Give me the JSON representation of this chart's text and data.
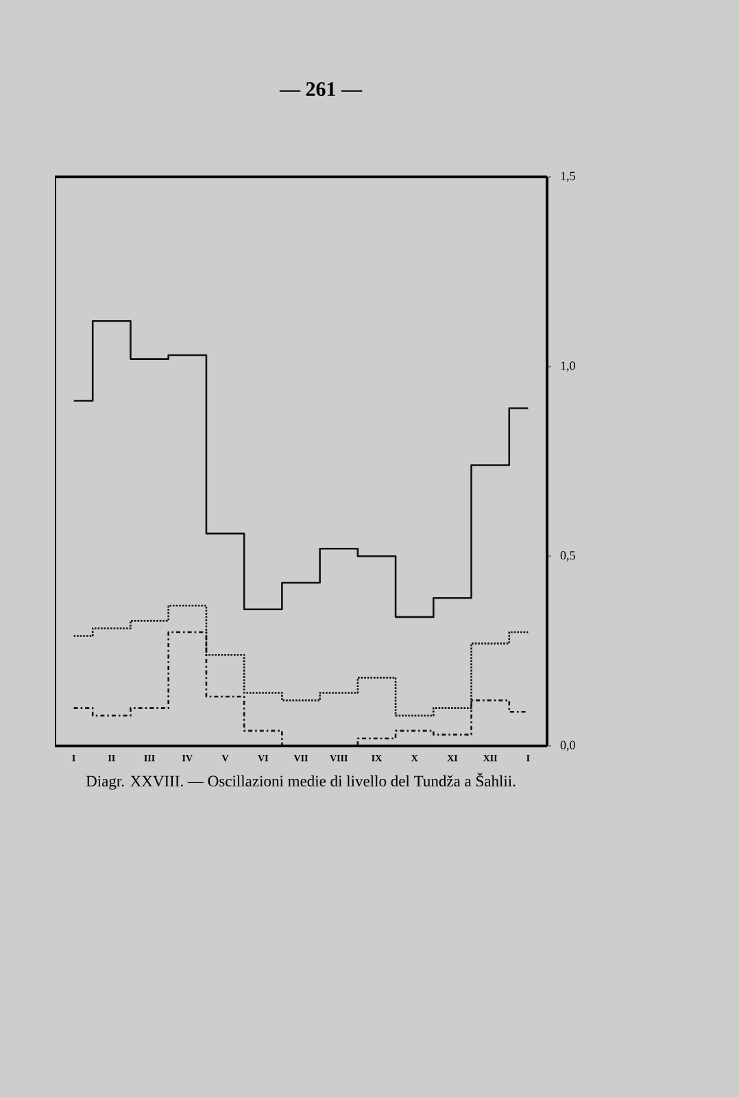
{
  "chart_data": {
    "type": "step",
    "title": "Diagr. XXVIII. — Oscillazioni medie di livello del Tundža a Šahlii.",
    "annotations": [
      "— 261 —"
    ],
    "categories": [
      "I",
      "II",
      "III",
      "IV",
      "V",
      "VI",
      "VII",
      "VIII",
      "IX",
      "X",
      "XI",
      "XII",
      "I"
    ],
    "series": [
      {
        "color": "#111111",
        "line_style": "solid",
        "values": [
          0.91,
          1.12,
          1.02,
          1.03,
          0.56,
          0.36,
          0.43,
          0.52,
          0.5,
          0.34,
          0.39,
          0.74,
          0.89
        ]
      },
      {
        "color": "#111111",
        "line_style": "dotted",
        "values": [
          0.29,
          0.31,
          0.33,
          0.37,
          0.24,
          0.14,
          0.12,
          0.14,
          0.18,
          0.08,
          0.1,
          0.27,
          0.3
        ]
      },
      {
        "color": "#111111",
        "line_style": "dashdot",
        "values": [
          0.1,
          0.08,
          0.1,
          0.3,
          0.13,
          0.04,
          0.0,
          0.0,
          0.02,
          0.04,
          0.03,
          0.12,
          0.09
        ]
      }
    ],
    "ylim": [
      0,
      1.5
    ],
    "yticks": [
      {
        "value": 0,
        "label": "0,0"
      },
      {
        "value": 0.5,
        "label": "0,5"
      },
      {
        "value": 1.0,
        "label": "1,0"
      },
      {
        "value": 1.5,
        "label": "1,5"
      }
    ],
    "grid": false
  }
}
